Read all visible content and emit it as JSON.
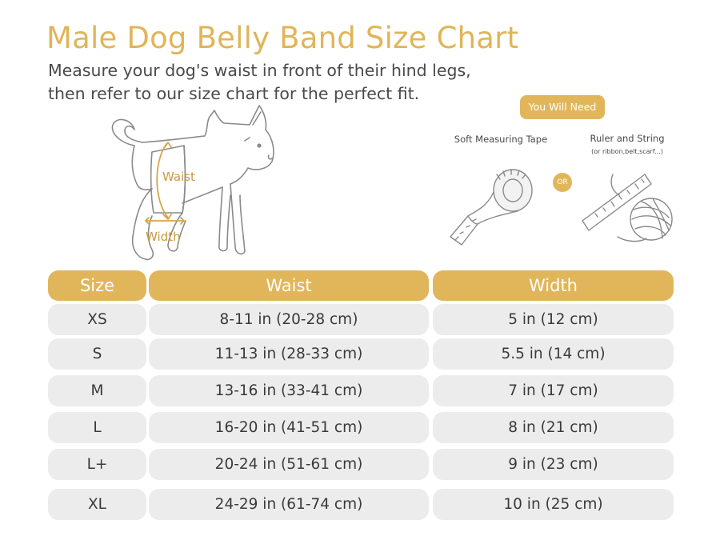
{
  "title": "Male Dog Belly Band Size Chart",
  "subtitle_lines": [
    "Measure your dog's waist in front of their hind legs,",
    "then refer to our size chart for the perfect fit."
  ],
  "illustration": {
    "waist_label": "Waist",
    "width_label": "Width"
  },
  "tools": {
    "badge": "You Will Need",
    "tape_label": "Soft Measuring Tape",
    "or_label": "OR",
    "ruler_label": "Ruler and String",
    "ruler_note": "(or ribbon,belt,scarf...)"
  },
  "table": {
    "headers": [
      "Size",
      "Waist",
      "Width"
    ],
    "rows": [
      [
        "XS",
        "8-11 in (20-28 cm)",
        "5 in (12 cm)"
      ],
      [
        "S",
        "11-13 in (28-33 cm)",
        "5.5 in (14 cm)"
      ],
      [
        "M",
        "13-16 in (33-41 cm)",
        "7 in (17 cm)"
      ],
      [
        "L",
        "16-20 in (41-51 cm)",
        "8 in (21 cm)"
      ],
      [
        "L+",
        "20-24 in (51-61 cm)",
        "9 in (23 cm)"
      ],
      [
        "XL",
        "24-29 in (61-74 cm)",
        "10 in (25 cm)"
      ]
    ]
  },
  "colors": {
    "accent": "#e1b65a",
    "row_bg": "#ececec",
    "text": "#3a3a3a"
  }
}
